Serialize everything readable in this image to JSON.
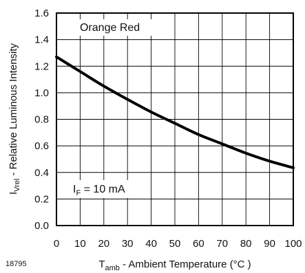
{
  "chart_data": {
    "type": "line",
    "title": "",
    "figure_id": "18795",
    "legend_label": "Orange Red",
    "condition_label": {
      "main": "I",
      "sub": "F",
      "rest": " = 10 mA"
    },
    "xlabel": {
      "main": "T",
      "sub": "amb",
      "rest": " - Ambient Temperature (°C )"
    },
    "ylabel": {
      "main": "I",
      "sub": "Vrel",
      "rest": "  - Relative Luminous Intensity"
    },
    "xlim": [
      0,
      100
    ],
    "ylim": [
      0,
      1.6
    ],
    "x_ticks": [
      "0",
      "10",
      "20",
      "30",
      "40",
      "50",
      "60",
      "70",
      "80",
      "90",
      "100"
    ],
    "y_ticks": [
      "0.0",
      "0.2",
      "0.4",
      "0.6",
      "0.8",
      "1.0",
      "1.2",
      "1.4",
      "1.6"
    ],
    "grid": true,
    "series": [
      {
        "x": [
          0,
          10,
          20,
          30,
          40,
          50,
          60,
          70,
          80,
          90,
          100
        ],
        "y": [
          1.27,
          1.16,
          1.05,
          0.95,
          0.855,
          0.77,
          0.685,
          0.615,
          0.545,
          0.485,
          0.435
        ],
        "color": "#000000"
      }
    ]
  }
}
